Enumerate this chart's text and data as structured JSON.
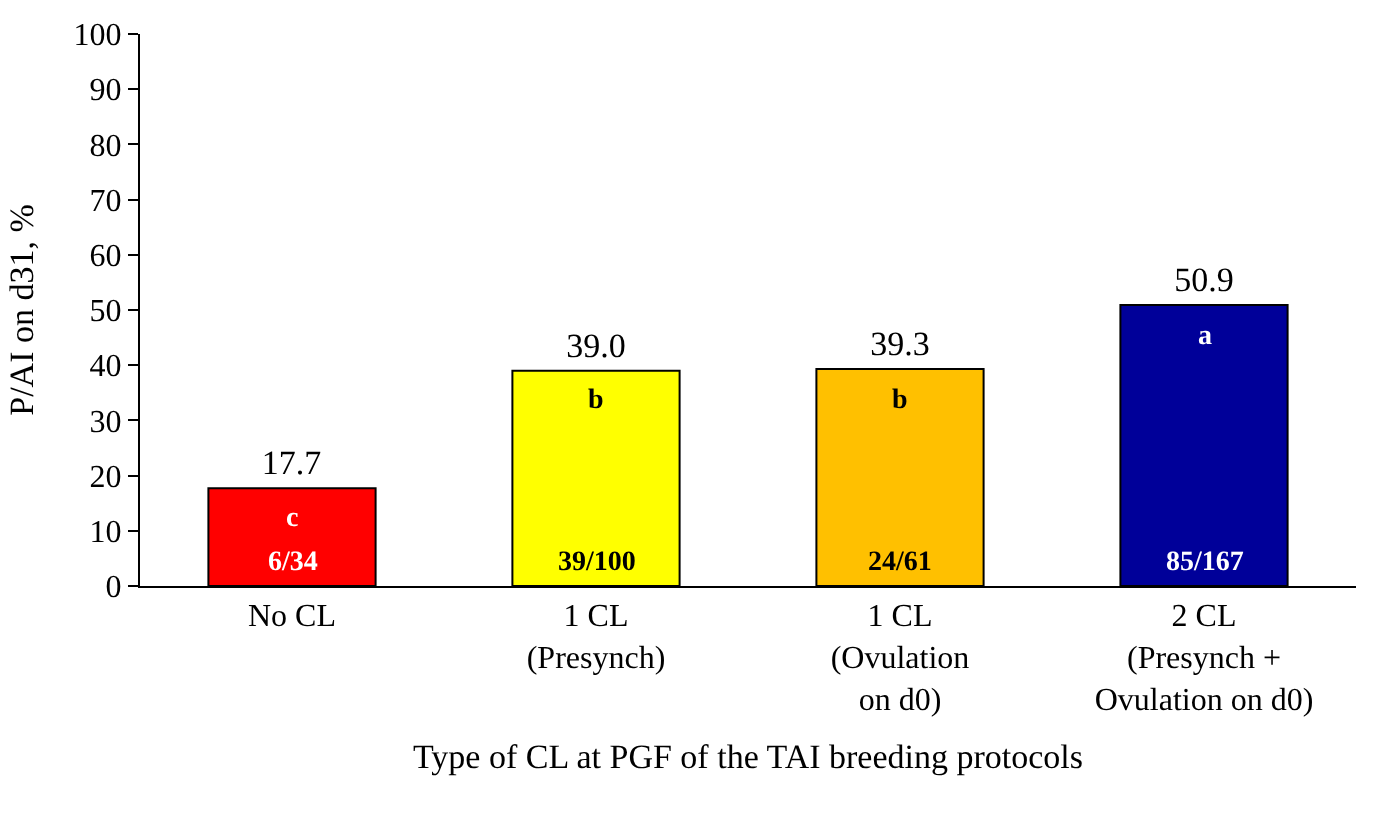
{
  "chart_data": {
    "type": "bar",
    "xlabel": "Type of CL at PGF of the TAI breeding protocols",
    "ylabel": "P/AI on d31, %",
    "categories": [
      "No CL",
      "1 CL\n(Presynch)",
      "1 CL\n(Ovulation\non d0)",
      "2 CL\n(Presynch +\nOvulation on d0)"
    ],
    "values": [
      17.7,
      39.0,
      39.3,
      50.9
    ],
    "value_labels": [
      "17.7",
      "39.0",
      "39.3",
      "50.9"
    ],
    "colors": [
      "#ff0000",
      "#ffff00",
      "#ffc000",
      "#000099"
    ],
    "ylim": [
      0,
      100
    ],
    "yticks": [
      0,
      10,
      20,
      30,
      40,
      50,
      60,
      70,
      80,
      90,
      100
    ],
    "annotations": [
      "c",
      "b",
      "b",
      "a",
      "6/34",
      "39/100",
      "24/61",
      "85/167"
    ]
  }
}
